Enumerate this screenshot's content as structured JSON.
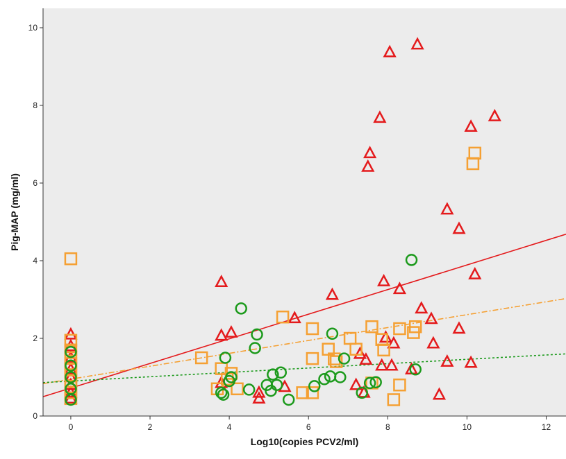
{
  "chart_data": {
    "type": "scatter",
    "title": "",
    "xlabel": "Log10(copies PCV2/ml)",
    "ylabel": "Pig-MAP (mg/ml)",
    "xlim": [
      -0.7,
      12.5
    ],
    "ylim": [
      0,
      10.5
    ],
    "x_ticks": [
      0,
      2,
      4,
      6,
      8,
      10,
      12
    ],
    "y_ticks": [
      0,
      2,
      4,
      6,
      8,
      10
    ],
    "grid": false,
    "legend": "none",
    "colors": {
      "plot_background": "#ececec",
      "red": "#e41a1c",
      "orange": "#f5a033",
      "green": "#1c9a1c"
    },
    "series": [
      {
        "marker": "triangle",
        "color": "#e41a1c",
        "points": [
          [
            0,
            2.1
          ],
          [
            0,
            1.8
          ],
          [
            0,
            1.5
          ],
          [
            0,
            1.2
          ],
          [
            0,
            1.0
          ],
          [
            0,
            0.8
          ],
          [
            0,
            0.6
          ],
          [
            0,
            0.45
          ],
          [
            3.8,
            0.85
          ],
          [
            3.8,
            3.45
          ],
          [
            3.8,
            2.07
          ],
          [
            4.05,
            2.15
          ],
          [
            4.75,
            0.45
          ],
          [
            4.75,
            0.6
          ],
          [
            5.4,
            0.75
          ],
          [
            5.65,
            2.52
          ],
          [
            6.6,
            3.12
          ],
          [
            7.2,
            0.8
          ],
          [
            7.3,
            1.6
          ],
          [
            7.4,
            0.6
          ],
          [
            7.45,
            1.45
          ],
          [
            7.5,
            6.42
          ],
          [
            7.55,
            6.77
          ],
          [
            7.8,
            7.68
          ],
          [
            7.85,
            1.3
          ],
          [
            7.9,
            3.47
          ],
          [
            7.95,
            2.02
          ],
          [
            8.05,
            9.37
          ],
          [
            8.1,
            1.3
          ],
          [
            8.15,
            1.87
          ],
          [
            8.3,
            3.27
          ],
          [
            8.6,
            1.2
          ],
          [
            8.75,
            9.57
          ],
          [
            8.85,
            2.77
          ],
          [
            9.1,
            2.5
          ],
          [
            9.15,
            1.87
          ],
          [
            9.3,
            0.55
          ],
          [
            9.5,
            5.32
          ],
          [
            9.5,
            1.4
          ],
          [
            9.8,
            4.82
          ],
          [
            9.8,
            2.25
          ],
          [
            10.1,
            7.45
          ],
          [
            10.1,
            1.37
          ],
          [
            10.2,
            3.65
          ],
          [
            10.7,
            7.72
          ]
        ],
        "fit": {
          "style": "solid",
          "intercept": 0.72,
          "slope": 0.317
        }
      },
      {
        "marker": "square",
        "color": "#f5a033",
        "points": [
          [
            0,
            4.05
          ],
          [
            0,
            1.95
          ],
          [
            0,
            1.7
          ],
          [
            0,
            1.5
          ],
          [
            0,
            1.35
          ],
          [
            0,
            1.2
          ],
          [
            0,
            1.05
          ],
          [
            0,
            0.9
          ],
          [
            0,
            0.75
          ],
          [
            0,
            0.6
          ],
          [
            0,
            0.45
          ],
          [
            3.3,
            1.5
          ],
          [
            3.7,
            0.7
          ],
          [
            3.8,
            1.22
          ],
          [
            3.95,
            0.95
          ],
          [
            4.05,
            1.1
          ],
          [
            4.2,
            0.7
          ],
          [
            5.35,
            2.55
          ],
          [
            5.85,
            0.6
          ],
          [
            6.1,
            2.25
          ],
          [
            6.1,
            1.48
          ],
          [
            6.1,
            0.6
          ],
          [
            6.5,
            1.72
          ],
          [
            6.65,
            1.47
          ],
          [
            6.7,
            1.4
          ],
          [
            7.05,
            2.0
          ],
          [
            7.2,
            1.72
          ],
          [
            7.6,
            0.85
          ],
          [
            7.6,
            2.3
          ],
          [
            7.85,
            1.97
          ],
          [
            7.9,
            1.7
          ],
          [
            8.15,
            0.42
          ],
          [
            8.3,
            2.25
          ],
          [
            8.3,
            0.8
          ],
          [
            8.65,
            2.15
          ],
          [
            8.7,
            2.3
          ],
          [
            10.15,
            6.5
          ],
          [
            10.2,
            6.77
          ]
        ],
        "fit": {
          "style": "dash-dot",
          "intercept": 0.95,
          "slope": 0.166
        }
      },
      {
        "marker": "circle",
        "color": "#1c9a1c",
        "points": [
          [
            0,
            1.65
          ],
          [
            0,
            1.3
          ],
          [
            0,
            1.0
          ],
          [
            0,
            0.7
          ],
          [
            0,
            0.42
          ],
          [
            3.8,
            0.6
          ],
          [
            3.85,
            0.55
          ],
          [
            3.9,
            1.5
          ],
          [
            4.0,
            0.9
          ],
          [
            4.05,
            1.0
          ],
          [
            4.3,
            2.77
          ],
          [
            4.5,
            0.68
          ],
          [
            4.65,
            1.75
          ],
          [
            4.7,
            2.1
          ],
          [
            4.95,
            0.8
          ],
          [
            5.05,
            0.65
          ],
          [
            5.1,
            1.07
          ],
          [
            5.2,
            0.8
          ],
          [
            5.3,
            1.12
          ],
          [
            5.5,
            0.42
          ],
          [
            6.15,
            0.77
          ],
          [
            6.4,
            0.95
          ],
          [
            6.55,
            1.02
          ],
          [
            6.6,
            2.12
          ],
          [
            6.8,
            1.0
          ],
          [
            6.9,
            1.48
          ],
          [
            7.35,
            0.6
          ],
          [
            7.55,
            0.85
          ],
          [
            7.7,
            0.87
          ],
          [
            8.6,
            4.02
          ],
          [
            8.7,
            1.2
          ]
        ],
        "fit": {
          "style": "dotted",
          "intercept": 0.9,
          "slope": 0.056
        }
      }
    ]
  }
}
